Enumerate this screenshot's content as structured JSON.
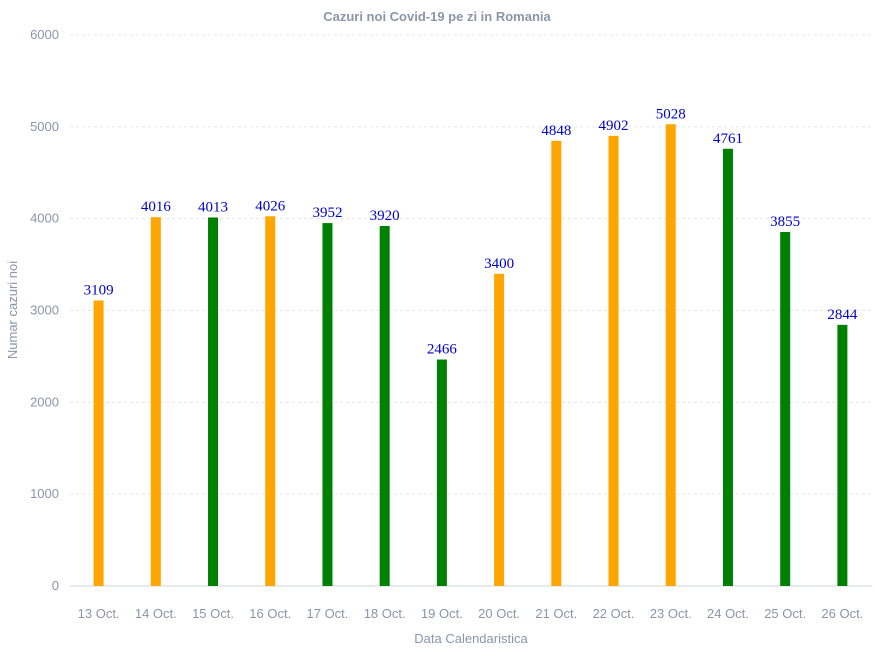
{
  "chart_data": {
    "type": "bar",
    "title": "Cazuri noi Covid-19 pe zi in Romania",
    "xlabel": "Data Calendaristica",
    "ylabel": "Numar cazuri noi",
    "ylim": [
      0,
      6000
    ],
    "yticks": [
      0,
      1000,
      2000,
      3000,
      4000,
      5000,
      6000
    ],
    "grid": true,
    "categories": [
      "13 Oct.",
      "14 Oct.",
      "15 Oct.",
      "16 Oct.",
      "17 Oct.",
      "18 Oct.",
      "19 Oct.",
      "20 Oct.",
      "21 Oct.",
      "22 Oct.",
      "23 Oct.",
      "24 Oct.",
      "25 Oct.",
      "26 Oct."
    ],
    "values": [
      3109,
      4016,
      4013,
      4026,
      3952,
      3920,
      2466,
      3400,
      4848,
      4902,
      5028,
      4761,
      3855,
      2844
    ],
    "bar_colors": [
      "#ffa500",
      "#ffa500",
      "#008000",
      "#ffa500",
      "#008000",
      "#008000",
      "#008000",
      "#ffa500",
      "#ffa500",
      "#ffa500",
      "#ffa500",
      "#008000",
      "#008000",
      "#008000"
    ],
    "data_label_color": "#0000cd"
  }
}
